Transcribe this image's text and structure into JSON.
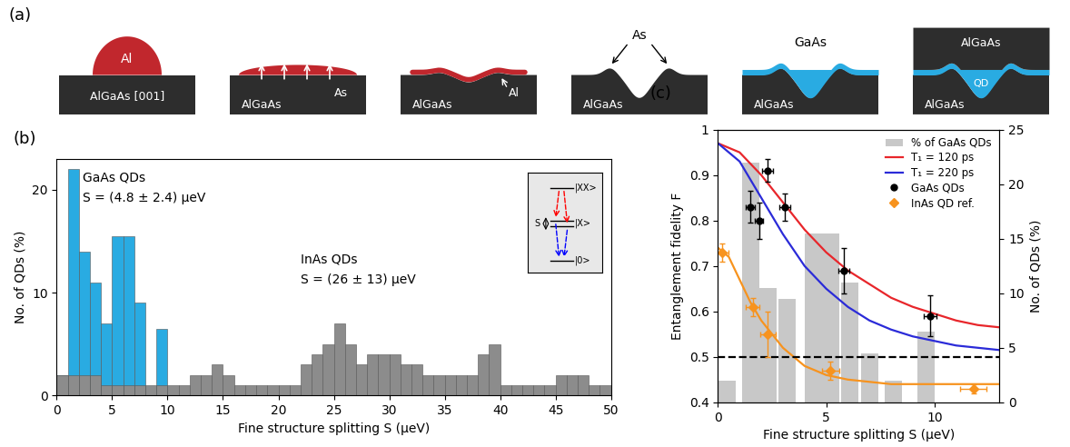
{
  "diagram": {
    "panel_label": "(a)",
    "steps": [
      {
        "substrate": "AlGaAs [001]",
        "label": "Al"
      },
      {
        "substrate": "AlGaAs",
        "label": "As"
      },
      {
        "substrate": "AlGaAs",
        "label": "Al"
      },
      {
        "substrate": "AlGaAs",
        "label": "As"
      },
      {
        "substrate": "AlGaAs",
        "label": "GaAs"
      },
      {
        "substrate": "AlGaAs",
        "cap": "AlGaAs",
        "label": "QD"
      }
    ]
  },
  "chart_data": [
    {
      "type": "histogram",
      "panel_label": "(b)",
      "x_label": "Fine structure splitting S (μeV)",
      "y_label": "No. of QDs (%)",
      "xlim": [
        0,
        50
      ],
      "xticks": [
        0,
        5,
        10,
        15,
        20,
        25,
        30,
        35,
        40,
        45,
        50
      ],
      "ylim": [
        0,
        23
      ],
      "yticks": [
        0,
        10,
        20
      ],
      "bins": [
        0,
        1,
        2,
        3,
        4,
        5,
        6,
        7,
        8,
        9,
        10,
        11,
        12,
        13,
        14,
        15,
        16,
        17,
        18,
        19,
        20,
        21,
        22,
        23,
        24,
        25,
        26,
        27,
        28,
        29,
        30,
        31,
        32,
        33,
        34,
        35,
        36,
        37,
        38,
        39,
        40,
        41,
        42,
        43,
        44,
        45,
        46,
        47,
        48,
        49,
        50
      ],
      "series": [
        {
          "color": "#29abe2",
          "values": [
            2,
            22,
            14,
            11,
            7,
            15.5,
            15.5,
            9,
            0,
            6.5,
            0,
            0,
            0,
            0,
            0,
            0,
            0,
            0,
            0,
            0,
            0,
            0,
            0,
            0,
            0,
            0,
            0,
            0,
            0,
            0,
            0,
            0,
            0,
            0,
            0,
            0,
            0,
            0,
            0,
            0,
            0,
            0,
            0,
            0,
            0,
            0,
            0,
            0,
            0,
            0
          ]
        },
        {
          "color": "#8c8c8c",
          "values": [
            2,
            2,
            2,
            2,
            1,
            1,
            1,
            1,
            1,
            1,
            1,
            1,
            2,
            2,
            3,
            2,
            1,
            1,
            1,
            1,
            1,
            1,
            3,
            4,
            5,
            7,
            5,
            3,
            4,
            4,
            4,
            3,
            3,
            2,
            2,
            2,
            2,
            2,
            4,
            5,
            1,
            1,
            1,
            1,
            1,
            2,
            2,
            2,
            1,
            1
          ]
        }
      ],
      "annotations": [
        "GaAs QDs",
        "S = (4.8 ± 2.4) μeV",
        "InAs QDs",
        "S = (26 ± 13) μeV"
      ],
      "inset": {
        "levels": [
          "|XX>",
          "|X>",
          "|0>"
        ],
        "splitting": "S"
      }
    },
    {
      "type": "combo",
      "panel_label": "(c)",
      "x_label": "Fine structure splitting S (μeV)",
      "y_label": "Entanglement fidelity F",
      "y2_label": "No. of QDs (%)",
      "xlim": [
        0,
        13
      ],
      "xticks": [
        0,
        5,
        10
      ],
      "ylim": [
        0.4,
        1
      ],
      "yticks": [
        0.4,
        0.5,
        0.6,
        0.7,
        0.8,
        0.9,
        1
      ],
      "y2lim": [
        0,
        25
      ],
      "y2ticks": [
        0,
        5,
        10,
        15,
        20,
        25
      ],
      "legend": "upper right",
      "series": [
        {
          "name": "% of GaAs QDs",
          "type": "bar",
          "axis": "y2",
          "color": "#c8c8c8",
          "x": [
            0.4,
            1.5,
            2.3,
            3.2,
            4.4,
            5.2,
            6.1,
            7.0,
            8.1,
            9.6
          ],
          "values": [
            2,
            22,
            10.5,
            9.5,
            15.5,
            15.5,
            11,
            4.5,
            2,
            6.5
          ]
        },
        {
          "name": "T₁ = 120 ps",
          "type": "line",
          "color": "#e8262b",
          "line_style": "solid",
          "x": [
            0,
            1,
            2,
            3,
            4,
            5,
            6,
            7,
            8,
            9,
            10,
            11,
            12,
            13
          ],
          "values": [
            0.97,
            0.95,
            0.9,
            0.84,
            0.78,
            0.73,
            0.69,
            0.66,
            0.63,
            0.61,
            0.595,
            0.58,
            0.57,
            0.565
          ]
        },
        {
          "name": "T₁ = 220 ps",
          "type": "line",
          "color": "#2b2bd8",
          "line_style": "solid",
          "x": [
            0,
            1,
            2,
            3,
            4,
            5,
            6,
            7,
            8,
            9,
            10,
            11,
            12,
            13
          ],
          "values": [
            0.97,
            0.93,
            0.85,
            0.77,
            0.7,
            0.65,
            0.61,
            0.58,
            0.56,
            0.545,
            0.535,
            0.525,
            0.52,
            0.515
          ]
        },
        {
          "type": "line",
          "color": "#f7931e",
          "line_style": "solid",
          "x": [
            0,
            0.5,
            1,
            1.5,
            2,
            3,
            4,
            5,
            6,
            8,
            10,
            13
          ],
          "values": [
            0.74,
            0.72,
            0.67,
            0.62,
            0.58,
            0.52,
            0.48,
            0.46,
            0.45,
            0.44,
            0.44,
            0.44
          ]
        },
        {
          "type": "line",
          "color": "#000000",
          "line_style": "dashed",
          "x": [
            0,
            13
          ],
          "values": [
            0.5,
            0.5
          ]
        },
        {
          "name": "GaAs QDs",
          "type": "scatter",
          "color": "#000000",
          "marker": "circle",
          "x": [
            1.5,
            1.9,
            2.3,
            3.1,
            5.8,
            9.8
          ],
          "values": [
            0.83,
            0.8,
            0.91,
            0.83,
            0.69,
            0.59
          ],
          "x_error": [
            0.2,
            0.2,
            0.25,
            0.25,
            0.25,
            0.3
          ],
          "y_error": [
            0.035,
            0.04,
            0.025,
            0.03,
            0.05,
            0.045
          ]
        },
        {
          "name": "InAs QD ref.",
          "type": "scatter",
          "color": "#f7931e",
          "marker": "diamond",
          "x": [
            0.2,
            1.6,
            2.3,
            5.2,
            11.8
          ],
          "values": [
            0.73,
            0.61,
            0.55,
            0.47,
            0.43
          ],
          "x_error": [
            0.3,
            0.3,
            0.35,
            0.4,
            0.6
          ],
          "y_error": [
            0.02,
            0.02,
            0.05,
            0.02,
            0.01
          ]
        }
      ]
    }
  ]
}
